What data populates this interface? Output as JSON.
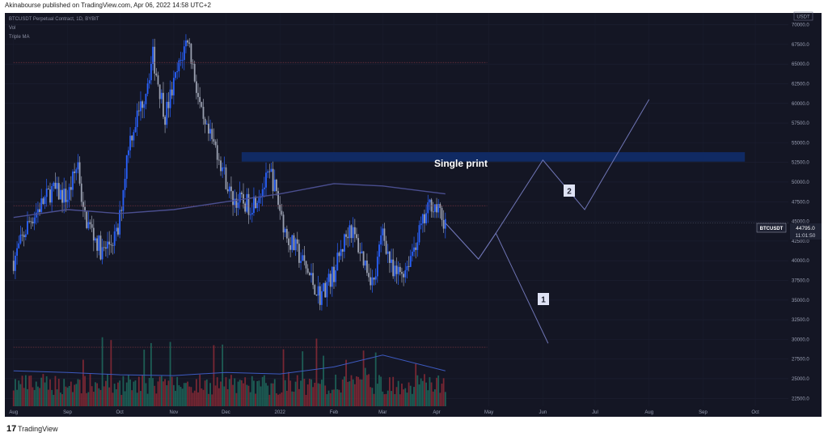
{
  "header": {
    "publisher_line": "Akinabourse published on TradingView.com, Apr 06, 2022 14:58 UTC+2"
  },
  "legend": {
    "symbol": "BTCUSDT Perpetual Contract, 1D, BYBIT",
    "vol": "Vol",
    "ma": "Triple MA"
  },
  "price_badge": {
    "symbol": "BTCUSDT",
    "price": "44795.0",
    "countdown": "11:01:50"
  },
  "currency_label": "USDT",
  "footer": {
    "brand": "TradingView"
  },
  "annotations": {
    "single_print": "Single print",
    "wave1": "1",
    "wave2": "2"
  },
  "colors": {
    "bg": "#141624",
    "up": "#2962ff",
    "down": "#9aa0b0",
    "ma": "#4a4e8f",
    "zone": "#102a63",
    "projection": "#6f75b5",
    "vol_up": "#1f6b5e",
    "vol_down": "#8a2a36"
  },
  "chart_data": {
    "type": "candlestick",
    "title": "BTCUSDT Perpetual Contract, 1D, BYBIT",
    "y_axis_labels": [
      "70000.0",
      "67500.0",
      "65000.0",
      "62500.0",
      "60000.0",
      "57500.0",
      "55000.0",
      "52500.0",
      "50000.0",
      "47500.0",
      "45000.0",
      "42500.0",
      "40000.0",
      "37500.0",
      "35000.0",
      "32500.0",
      "30000.0",
      "27500.0",
      "25000.0",
      "22500.0"
    ],
    "x_axis_labels": [
      "Aug",
      "Sep",
      "Oct",
      "Nov",
      "Dec",
      "2022",
      "Feb",
      "Mar",
      "Apr",
      "May",
      "Jun",
      "Jul",
      "Aug",
      "Sep",
      "Oct"
    ],
    "ylim": [
      21500,
      71500
    ],
    "price_path": [
      [
        "2021-08-01",
        40000
      ],
      [
        "2021-08-10",
        45000
      ],
      [
        "2021-08-23",
        49000
      ],
      [
        "2021-09-01",
        48000
      ],
      [
        "2021-09-07",
        52500
      ],
      [
        "2021-09-10",
        46000
      ],
      [
        "2021-09-21",
        41000
      ],
      [
        "2021-09-30",
        43500
      ],
      [
        "2021-10-06",
        55000
      ],
      [
        "2021-10-15",
        61000
      ],
      [
        "2021-10-20",
        66000
      ],
      [
        "2021-10-27",
        58500
      ],
      [
        "2021-11-09",
        68500
      ],
      [
        "2021-11-18",
        57000
      ],
      [
        "2021-11-26",
        54000
      ],
      [
        "2021-12-04",
        48000
      ],
      [
        "2021-12-15",
        47000
      ],
      [
        "2021-12-27",
        51000
      ],
      [
        "2022-01-05",
        43000
      ],
      [
        "2022-01-10",
        41500
      ],
      [
        "2022-01-24",
        35500
      ],
      [
        "2022-02-01",
        38500
      ],
      [
        "2022-02-10",
        44500
      ],
      [
        "2022-02-24",
        37000
      ],
      [
        "2022-03-01",
        44000
      ],
      [
        "2022-03-07",
        38000
      ],
      [
        "2022-03-14",
        39000
      ],
      [
        "2022-03-29",
        47500
      ],
      [
        "2022-04-06",
        44795
      ]
    ],
    "ma_path": [
      [
        "2021-08-01",
        45500
      ],
      [
        "2021-09-01",
        46500
      ],
      [
        "2021-10-01",
        46000
      ],
      [
        "2021-11-01",
        46500
      ],
      [
        "2021-12-01",
        47500
      ],
      [
        "2022-01-01",
        48500
      ],
      [
        "2022-02-01",
        49800
      ],
      [
        "2022-03-01",
        49500
      ],
      [
        "2022-04-06",
        48500
      ]
    ],
    "volume_ma_path": [
      [
        "2021-08-01",
        26000
      ],
      [
        "2021-09-01",
        25800
      ],
      [
        "2021-10-01",
        25500
      ],
      [
        "2021-11-01",
        25400
      ],
      [
        "2021-12-01",
        25800
      ],
      [
        "2022-01-01",
        25600
      ],
      [
        "2022-02-01",
        26500
      ],
      [
        "2022-03-01",
        28000
      ],
      [
        "2022-04-06",
        26000
      ]
    ],
    "projection_path": [
      [
        "2022-04-06",
        44795
      ],
      [
        "2022-04-25",
        40200
      ],
      [
        "2022-05-05",
        43500
      ],
      [
        "2022-06-04",
        29500
      ]
    ],
    "projection_path_2": [
      [
        "2022-04-06",
        44795
      ],
      [
        "2022-04-25",
        40200
      ],
      [
        "2022-05-05",
        43500
      ],
      [
        "2022-06-01",
        52800
      ],
      [
        "2022-06-25",
        46500
      ],
      [
        "2022-08-01",
        60500
      ]
    ],
    "single_print_zone": {
      "from_date": "2021-12-10",
      "to_date": "2022-09-25",
      "low": 52600,
      "high": 53800
    },
    "horizontal_levels": [
      {
        "price": 65200,
        "from_date": "2021-08-01",
        "to_date": "2022-04-30"
      },
      {
        "price": 47000,
        "from_date": "2021-08-01",
        "to_date": "2022-04-30"
      },
      {
        "price": 29000,
        "from_date": "2021-08-01",
        "to_date": "2022-04-30"
      }
    ],
    "current_price": 44795.0
  }
}
